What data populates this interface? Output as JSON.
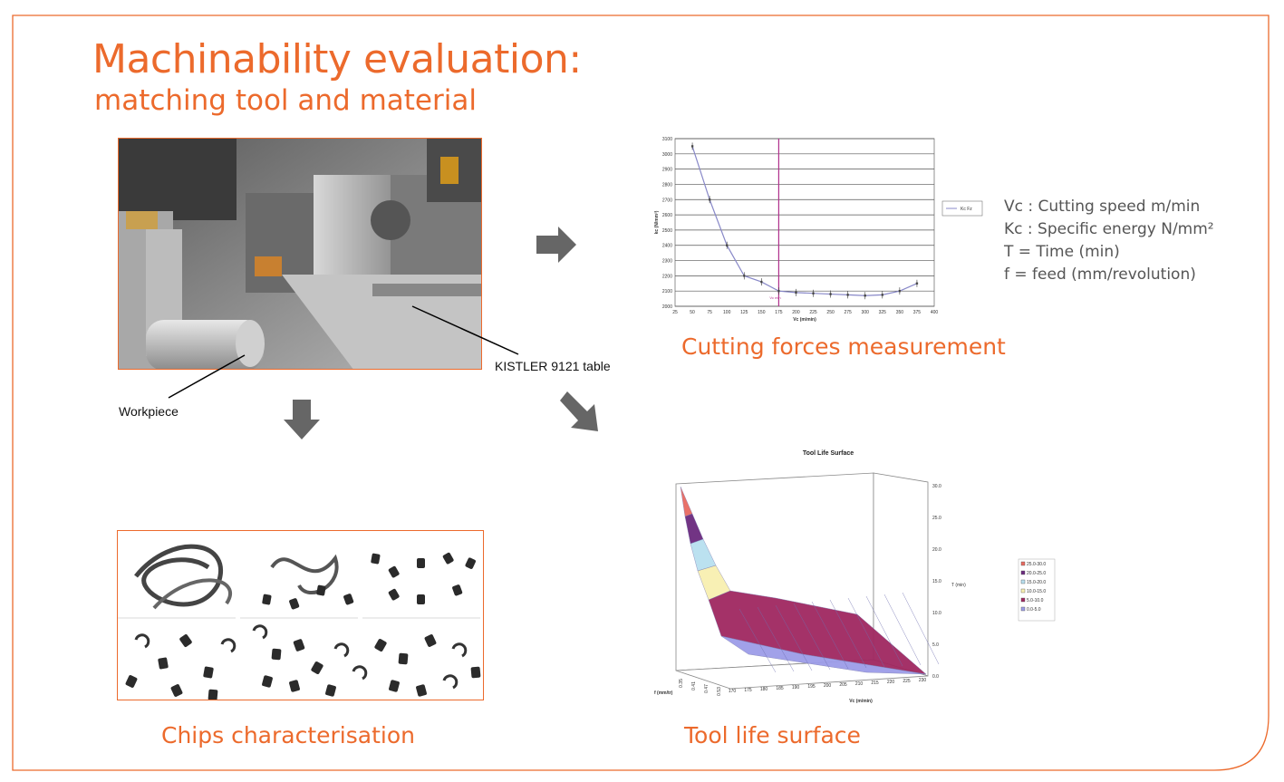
{
  "slide": {
    "title": "Machinability evaluation:",
    "subtitle": "matching tool and material",
    "accent": "#ec6a2c",
    "arrow_color": "#666666"
  },
  "photo": {
    "workpiece_label": "Workpiece",
    "table_label": "KISTLER 9121 table"
  },
  "captions": {
    "cutting_forces": "Cutting forces measurement",
    "chips": "Chips characterisation",
    "tool_life": "Tool life surface"
  },
  "legend_notes": [
    "Vc : Cutting speed m/min",
    "Kc : Specific energy N/mm²",
    "T = Time (min)",
    "f = feed (mm/revolution)"
  ],
  "chart_data": [
    {
      "type": "line",
      "title": "",
      "xlabel": "Vc (m/min)",
      "ylabel": "kc (N/mm²)",
      "xlim": [
        25,
        400
      ],
      "ylim": [
        2000,
        3100
      ],
      "x_ticks": [
        "25",
        "50",
        "75",
        "100",
        "125",
        "150",
        "175",
        "200",
        "225",
        "250",
        "275",
        "300",
        "325",
        "350",
        "375",
        "400"
      ],
      "y_ticks": [
        "2000",
        "2100",
        "2200",
        "2300",
        "2400",
        "2500",
        "2600",
        "2700",
        "2800",
        "2900",
        "3000",
        "3100"
      ],
      "grid": true,
      "legend": "right",
      "vertical_marker": {
        "x": 175,
        "label": "Vc min",
        "color": "#b0308c"
      },
      "series": [
        {
          "name": "Kc Fz",
          "color": "#8888c8",
          "x": [
            50,
            75,
            100,
            125,
            150,
            175,
            200,
            225,
            250,
            275,
            300,
            325,
            350,
            375
          ],
          "values": [
            3050,
            2700,
            2400,
            2200,
            2160,
            2100,
            2090,
            2085,
            2080,
            2075,
            2070,
            2075,
            2100,
            2150
          ]
        }
      ]
    },
    {
      "type": "surface",
      "title": "Tool Life Surface",
      "xlabel": "Vc (m/min)",
      "ylabel": "f (mm/tr)",
      "zlabel": "T (min)",
      "x_ticks": [
        "170",
        "175",
        "180",
        "185",
        "190",
        "195",
        "200",
        "205",
        "210",
        "215",
        "220",
        "225",
        "230"
      ],
      "y_ticks": [
        "0.35",
        "0.41",
        "0.47",
        "0.53"
      ],
      "z_ticks": [
        "0.0",
        "5.0",
        "10.0",
        "15.0",
        "20.0",
        "25.0",
        "30.0"
      ],
      "legend": "right",
      "bands": [
        {
          "name": "25.0-30.0",
          "color": "#e86a60"
        },
        {
          "name": "20.0-25.0",
          "color": "#6b2a7e"
        },
        {
          "name": "15.0-20.0",
          "color": "#b8e0f0"
        },
        {
          "name": "10.0-15.0",
          "color": "#f8f0b0"
        },
        {
          "name": "5.0-10.0",
          "color": "#a02860"
        },
        {
          "name": "0.0-5.0",
          "color": "#9c9ce8"
        }
      ]
    }
  ]
}
